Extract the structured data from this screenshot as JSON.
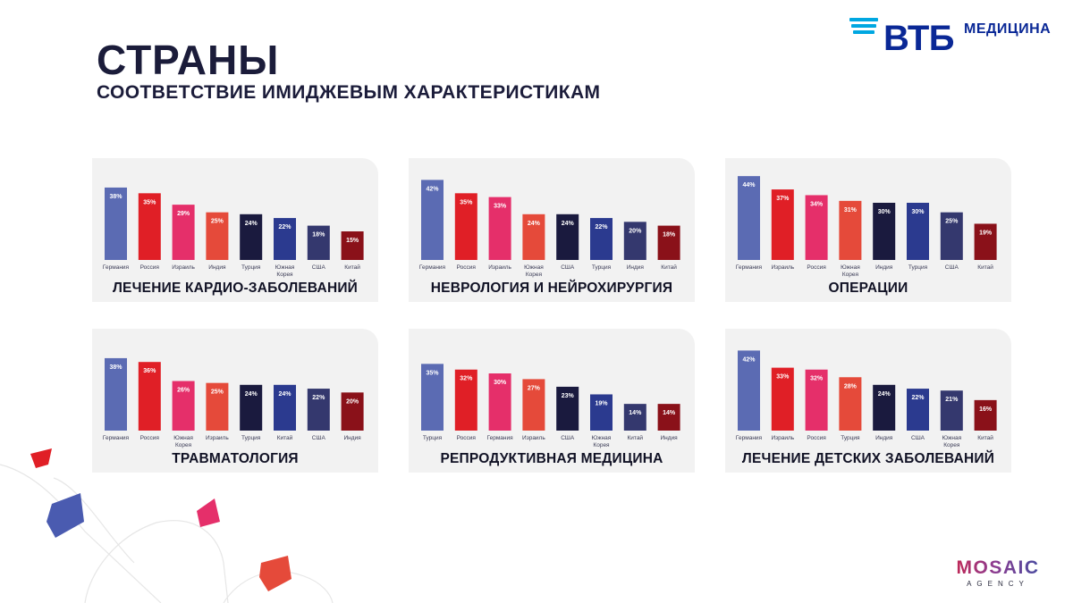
{
  "header": {
    "title": "СТРАНЫ",
    "subtitle": "СООТВЕТСТВИЕ ИМИДЖЕВЫМ ХАРАКТЕРИСТИКАМ"
  },
  "logo": {
    "brand": "ВТБ",
    "product": "МЕДИЦИНА"
  },
  "agency": {
    "name": "MOSAIC",
    "sub": "AGENCY"
  },
  "colors": [
    "#5b6bb3",
    "#e01f26",
    "#e52f6a",
    "#e54a3a",
    "#1a1a3e",
    "#2b3a8f",
    "#34386e",
    "#8a1119"
  ],
  "chart_data": [
    {
      "type": "bar",
      "title": "ЛЕЧЕНИЕ КАРДИО-ЗАБОЛЕВАНИЙ",
      "categories": [
        "Германия",
        "Россия",
        "Израиль",
        "Индия",
        "Турция",
        "Южная Корея",
        "США",
        "Китай"
      ],
      "values": [
        38,
        35,
        29,
        25,
        24,
        22,
        18,
        15
      ],
      "value_labels": [
        "38%",
        "35%",
        "29%",
        "25%",
        "24%",
        "22%",
        "18%",
        "15%"
      ],
      "ylim": [
        0,
        45
      ]
    },
    {
      "type": "bar",
      "title": "НЕВРОЛОГИЯ И НЕЙРОХИРУРГИЯ",
      "categories": [
        "Германия",
        "Россия",
        "Израиль",
        "Южная Корея",
        "США",
        "Турция",
        "Индия",
        "Китай"
      ],
      "values": [
        42,
        35,
        33,
        24,
        24,
        22,
        20,
        18
      ],
      "value_labels": [
        "42%",
        "35%",
        "33%",
        "24%",
        "24%",
        "22%",
        "20%",
        "18%"
      ],
      "ylim": [
        0,
        45
      ]
    },
    {
      "type": "bar",
      "title": "ОПЕРАЦИИ",
      "categories": [
        "Германия",
        "Израиль",
        "Россия",
        "Южная Корея",
        "Индия",
        "Турция",
        "США",
        "Китай"
      ],
      "values": [
        44,
        37,
        34,
        31,
        30,
        30,
        25,
        19
      ],
      "value_labels": [
        "44%",
        "37%",
        "34%",
        "31%",
        "30%",
        "30%",
        "25%",
        "19%"
      ],
      "ylim": [
        0,
        45
      ]
    },
    {
      "type": "bar",
      "title": "ТРАВМАТОЛОГИЯ",
      "categories": [
        "Германия",
        "Россия",
        "Южная Корея",
        "Израиль",
        "Турция",
        "Китай",
        "США",
        "Индия"
      ],
      "values": [
        38,
        36,
        26,
        25,
        24,
        24,
        22,
        20
      ],
      "value_labels": [
        "38%",
        "36%",
        "26%",
        "25%",
        "24%",
        "24%",
        "22%",
        "20%"
      ],
      "ylim": [
        0,
        45
      ]
    },
    {
      "type": "bar",
      "title": "РЕПРОДУКТИВНАЯ МЕДИЦИНА",
      "categories": [
        "Турция",
        "Россия",
        "Германия",
        "Израиль",
        "США",
        "Южная Корея",
        "Китай",
        "Индия"
      ],
      "values": [
        35,
        32,
        30,
        27,
        23,
        19,
        14,
        14
      ],
      "value_labels": [
        "35%",
        "32%",
        "30%",
        "27%",
        "23%",
        "19%",
        "14%",
        "14%"
      ],
      "ylim": [
        0,
        45
      ]
    },
    {
      "type": "bar",
      "title": "ЛЕЧЕНИЕ ДЕТСКИХ ЗАБОЛЕВАНИЙ",
      "categories": [
        "Германия",
        "Израиль",
        "Россия",
        "Турция",
        "Индия",
        "США",
        "Южная Корея",
        "Китай"
      ],
      "values": [
        42,
        33,
        32,
        28,
        24,
        22,
        21,
        16
      ],
      "value_labels": [
        "42%",
        "33%",
        "32%",
        "28%",
        "24%",
        "22%",
        "21%",
        "16%"
      ],
      "ylim": [
        0,
        45
      ]
    }
  ]
}
